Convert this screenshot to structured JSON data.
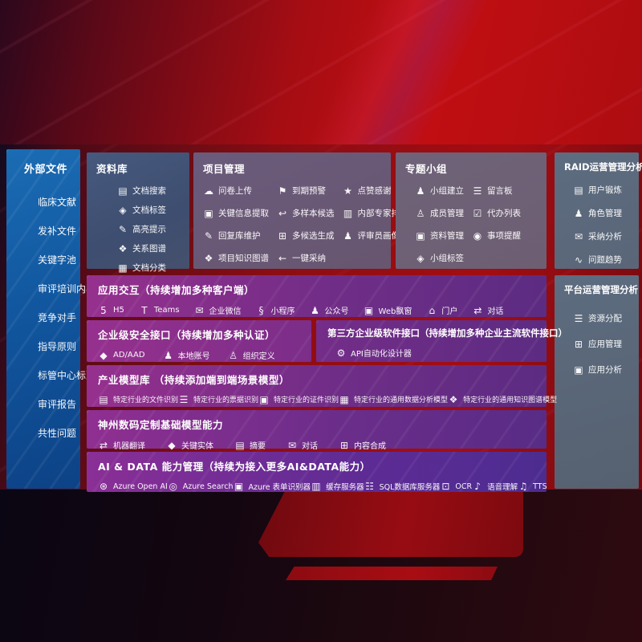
{
  "colors": {
    "accent_red": "#c10e12",
    "sidebar_blue": "#1668b0",
    "box_blue": "#41577b",
    "box_gray": "#5d6c80",
    "purple_left": "#96308e",
    "purple_right": "#5c2c82"
  },
  "sidebar": {
    "title": "外部文件",
    "items": [
      {
        "label": "临床文献"
      },
      {
        "label": "发补文件"
      },
      {
        "label": "关键字池"
      },
      {
        "label": "审评培训内容"
      },
      {
        "label": "竞争对手"
      },
      {
        "label": "指导原则"
      },
      {
        "label": "标管中心标准"
      },
      {
        "label": "审评报告"
      },
      {
        "label": "共性问题"
      }
    ]
  },
  "boxes": {
    "library": {
      "title": "资料库",
      "items": [
        {
          "icon": "doc-search-icon",
          "glyph": "▤",
          "label": "文档搜索"
        },
        {
          "icon": "tag-icon",
          "glyph": "◈",
          "label": "文档标签"
        },
        {
          "icon": "highlight-pen-icon",
          "glyph": "✎",
          "label": "高亮提示"
        },
        {
          "icon": "relation-graph-icon",
          "glyph": "❖",
          "label": "关系图谱"
        },
        {
          "icon": "doc-classify-icon",
          "glyph": "▦",
          "label": "文档分类"
        }
      ]
    },
    "project": {
      "title": "项目管理",
      "columns": [
        [
          {
            "icon": "cloud-upload-icon",
            "glyph": "☁",
            "label": "问卷上传"
          },
          {
            "icon": "key-info-extract-icon",
            "glyph": "▣",
            "label": "关键信息提取"
          },
          {
            "icon": "reply-edit-icon",
            "glyph": "✎",
            "label": "回复库维护"
          },
          {
            "icon": "knowledge-graph-icon",
            "glyph": "❖",
            "label": "项目知识图谱"
          }
        ],
        [
          {
            "icon": "due-alert-icon",
            "glyph": "⚑",
            "label": "到期预警"
          },
          {
            "icon": "multi-sample-icon",
            "glyph": "↩",
            "label": "多样本候选"
          },
          {
            "icon": "multi-generate-icon",
            "glyph": "⊞",
            "label": "多候选生成"
          },
          {
            "icon": "one-click-adopt-icon",
            "glyph": "←",
            "label": "一键采纳"
          }
        ],
        [
          {
            "icon": "thumbs-up-icon",
            "glyph": "★",
            "label": "点赞感谢"
          },
          {
            "icon": "expert-ranking-icon",
            "glyph": "▥",
            "label": "内部专家排名"
          },
          {
            "icon": "reviewer-profile-icon",
            "glyph": "♟",
            "label": "评审员画像"
          }
        ]
      ]
    },
    "group": {
      "title": "专题小组",
      "columns": [
        [
          {
            "icon": "group-create-icon",
            "glyph": "♟",
            "label": "小组建立"
          },
          {
            "icon": "member-manage-icon",
            "glyph": "♙",
            "label": "成员管理"
          },
          {
            "icon": "material-manage-icon",
            "glyph": "▣",
            "label": "资料管理"
          },
          {
            "icon": "group-tag-icon",
            "glyph": "◈",
            "label": "小组标签"
          }
        ],
        [
          {
            "icon": "message-board-icon",
            "glyph": "☰",
            "label": "留言板"
          },
          {
            "icon": "todo-list-icon",
            "glyph": "☑",
            "label": "代办列表"
          },
          {
            "icon": "reminder-bell-icon",
            "glyph": "◉",
            "label": "事项提醒"
          }
        ]
      ]
    },
    "raid": {
      "title": "RAID运营管理分析",
      "items": [
        {
          "icon": "user-card-icon",
          "glyph": "▤",
          "label": "用户锻炼"
        },
        {
          "icon": "role-manage-icon",
          "glyph": "♟",
          "label": "角色管理"
        },
        {
          "icon": "adoption-analysis-icon",
          "glyph": "✉",
          "label": "采纳分析"
        },
        {
          "icon": "issue-trend-icon",
          "glyph": "∿",
          "label": "问题趋势"
        }
      ]
    },
    "platform": {
      "title": "平台运营管理分析",
      "items": [
        {
          "icon": "resource-allocation-icon",
          "glyph": "☰",
          "label": "资源分配"
        },
        {
          "icon": "app-manage-icon",
          "glyph": "⊞",
          "label": "应用管理"
        },
        {
          "icon": "app-analysis-icon",
          "glyph": "▣",
          "label": "应用分析"
        }
      ]
    },
    "interaction": {
      "title": "应用交互（持续增加多种客户端）",
      "items": [
        {
          "icon": "html5-icon",
          "glyph": "5",
          "label": "H5"
        },
        {
          "icon": "teams-icon",
          "glyph": "T",
          "label": "Teams"
        },
        {
          "icon": "wechat-work-icon",
          "glyph": "✉",
          "label": "企业微信"
        },
        {
          "icon": "miniprogram-icon",
          "glyph": "§",
          "label": "小程序"
        },
        {
          "icon": "official-account-icon",
          "glyph": "♟",
          "label": "公众号"
        },
        {
          "icon": "web-popup-icon",
          "glyph": "▣",
          "label": "Web飘窗"
        },
        {
          "icon": "portal-icon",
          "glyph": "⌂",
          "label": "门户"
        },
        {
          "icon": "dialog-icon",
          "glyph": "⇄",
          "label": "对话"
        }
      ]
    },
    "security": {
      "title": "企业级安全接口（持续增加多种认证）",
      "items": [
        {
          "icon": "ad-shield-icon",
          "glyph": "◆",
          "label": "AD/AAD"
        },
        {
          "icon": "local-account-icon",
          "glyph": "♟",
          "label": "本地账号"
        },
        {
          "icon": "org-define-icon",
          "glyph": "♙",
          "label": "组织定义"
        }
      ]
    },
    "third_party": {
      "title": "第三方企业级软件接口（持续增加多种企业主流软件接口）",
      "items": [
        {
          "icon": "api-designer-icon",
          "glyph": "⚙",
          "label": "API自动化设计器"
        }
      ]
    },
    "industry_models": {
      "title": "产业模型库 （持续添加端到端场景模型）",
      "items": [
        {
          "icon": "file-recognition-icon",
          "glyph": "▤",
          "label": "特定行业的文件识别"
        },
        {
          "icon": "receipt-recognition-icon",
          "glyph": "☰",
          "label": "特定行业的票据识别"
        },
        {
          "icon": "id-recognition-icon",
          "glyph": "▣",
          "label": "特定行业的证件识别"
        },
        {
          "icon": "data-analysis-model-icon",
          "glyph": "▦",
          "label": "特定行业的通用数据分析模型"
        },
        {
          "icon": "knowledge-graph-model-icon",
          "glyph": "❖",
          "label": "特定行业的通用知识图谱模型"
        }
      ]
    },
    "custom_models": {
      "title": "神州数码定制基础模型能力",
      "items": [
        {
          "icon": "translate-icon",
          "glyph": "⇄",
          "label": "机器翻译"
        },
        {
          "icon": "key-entity-icon",
          "glyph": "◆",
          "label": "关键实体"
        },
        {
          "icon": "summary-icon",
          "glyph": "▤",
          "label": "摘要"
        },
        {
          "icon": "chat-icon",
          "glyph": "✉",
          "label": "对话"
        },
        {
          "icon": "content-compose-icon",
          "glyph": "⊞",
          "label": "内容合成"
        }
      ]
    },
    "ai_data": {
      "title": "AI & DATA 能力管理（持续为接入更多AI&DATA能力）",
      "items": [
        {
          "icon": "openai-icon",
          "glyph": "⊛",
          "label": "Azure Open AI"
        },
        {
          "icon": "azure-search-icon",
          "glyph": "◎",
          "label": "Azure Search"
        },
        {
          "icon": "form-recognizer-icon",
          "glyph": "▣",
          "label": "Azure 表单识别器"
        },
        {
          "icon": "cache-server-icon",
          "glyph": "▥",
          "label": "缓存服务器"
        },
        {
          "icon": "sql-server-icon",
          "glyph": "☷",
          "label": "SQL数据库服务器"
        },
        {
          "icon": "ocr-icon",
          "glyph": "⊡",
          "label": "OCR"
        },
        {
          "icon": "speech-understanding-icon",
          "glyph": "♪",
          "label": "语音理解"
        },
        {
          "icon": "tts-icon",
          "glyph": "♫",
          "label": "TTS"
        }
      ]
    }
  }
}
